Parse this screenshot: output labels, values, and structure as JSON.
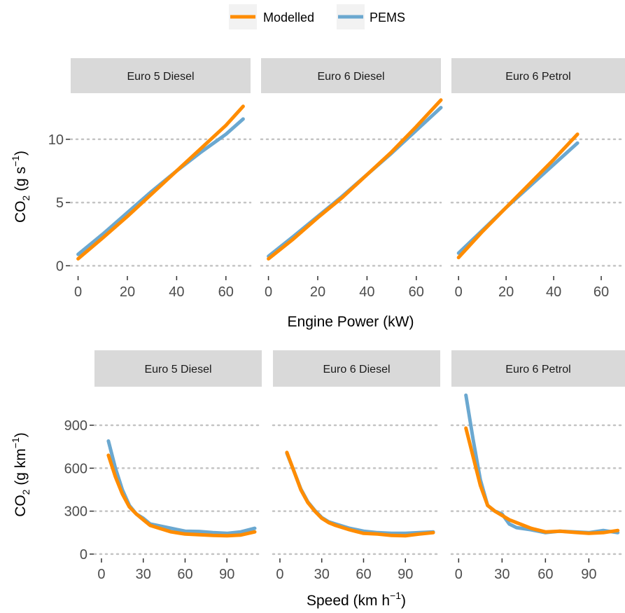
{
  "legend": {
    "items": [
      {
        "label": "Modelled",
        "color": "#FF8C00"
      },
      {
        "label": "PEMS",
        "color": "#6BA8D0"
      }
    ]
  },
  "chart_data": [
    {
      "type": "line",
      "facet_row": "top",
      "xlabel": "Engine Power (kW)",
      "ylabel_main": "CO",
      "ylabel_sub": "2",
      "ylabel_unit": " (g s",
      "ylabel_sup": "−1",
      "ylabel_close": ")",
      "xlim": [
        -3,
        70
      ],
      "ylim": [
        -0.7,
        13.2
      ],
      "xticks": [
        0,
        20,
        40,
        60
      ],
      "yticks": [
        0,
        5,
        10
      ],
      "grid": "horizontal-dotted",
      "panels": [
        {
          "label": "Euro 5 Diesel",
          "series": [
            {
              "name": "Modelled",
              "x": [
                0,
                10,
                20,
                30,
                40,
                50,
                60,
                67
              ],
              "y": [
                0.55,
                2.2,
                3.9,
                5.7,
                7.5,
                9.3,
                11.1,
                12.6
              ]
            },
            {
              "name": "PEMS",
              "x": [
                0,
                10,
                20,
                30,
                40,
                50,
                60,
                67
              ],
              "y": [
                0.9,
                2.5,
                4.2,
                5.9,
                7.5,
                9.0,
                10.4,
                11.6
              ]
            }
          ]
        },
        {
          "label": "Euro 6 Diesel",
          "series": [
            {
              "name": "Modelled",
              "x": [
                0,
                10,
                20,
                30,
                40,
                50,
                60,
                70
              ],
              "y": [
                0.55,
                2.1,
                3.8,
                5.4,
                7.2,
                9.0,
                11.0,
                13.1
              ]
            },
            {
              "name": "PEMS",
              "x": [
                0,
                10,
                20,
                30,
                40,
                50,
                60,
                70
              ],
              "y": [
                0.75,
                2.3,
                3.9,
                5.5,
                7.2,
                8.9,
                10.7,
                12.5
              ]
            }
          ]
        },
        {
          "label": "Euro 6 Petrol",
          "series": [
            {
              "name": "Modelled",
              "x": [
                0,
                10,
                20,
                30,
                40,
                50
              ],
              "y": [
                0.65,
                2.7,
                4.6,
                6.5,
                8.4,
                10.4
              ]
            },
            {
              "name": "PEMS",
              "x": [
                0,
                10,
                20,
                30,
                40,
                50
              ],
              "y": [
                1.0,
                2.8,
                4.6,
                6.3,
                8.0,
                9.7
              ]
            }
          ]
        }
      ]
    },
    {
      "type": "line",
      "facet_row": "bottom",
      "xlabel_main": "Speed (km h",
      "xlabel_sup": "−1",
      "xlabel_close": ")",
      "ylabel_main": "CO",
      "ylabel_sub": "2",
      "ylabel_unit": " (g km",
      "ylabel_sup": "−1",
      "ylabel_close": ")",
      "xlim": [
        -5,
        115
      ],
      "ylim": [
        -20,
        1130
      ],
      "xticks": [
        0,
        30,
        60,
        90
      ],
      "yticks": [
        0,
        300,
        600,
        900
      ],
      "grid": "horizontal-dotted",
      "panels": [
        {
          "label": "Euro 5 Diesel",
          "series": [
            {
              "name": "Modelled",
              "x": [
                5,
                10,
                15,
                20,
                25,
                30,
                35,
                40,
                50,
                60,
                70,
                80,
                90,
                100,
                110
              ],
              "y": [
                690,
                540,
                420,
                330,
                280,
                240,
                200,
                185,
                155,
                140,
                135,
                130,
                128,
                133,
                155
              ]
            },
            {
              "name": "PEMS",
              "x": [
                5,
                10,
                15,
                20,
                25,
                30,
                35,
                40,
                50,
                60,
                70,
                80,
                90,
                100,
                110
              ],
              "y": [
                790,
                600,
                450,
                340,
                280,
                250,
                210,
                200,
                180,
                160,
                158,
                150,
                145,
                155,
                180
              ]
            }
          ]
        },
        {
          "label": "Euro 6 Diesel",
          "series": [
            {
              "name": "Modelled",
              "x": [
                5,
                10,
                15,
                20,
                25,
                30,
                35,
                40,
                50,
                60,
                70,
                80,
                90,
                100,
                110
              ],
              "y": [
                710,
                580,
                450,
                360,
                300,
                250,
                220,
                200,
                170,
                145,
                140,
                130,
                128,
                140,
                150
              ]
            },
            {
              "name": "PEMS",
              "x": [
                5,
                10,
                15,
                20,
                25,
                30,
                35,
                40,
                50,
                60,
                70,
                80,
                90,
                100,
                110
              ],
              "y": [
                705,
                580,
                455,
                365,
                305,
                255,
                225,
                210,
                180,
                160,
                150,
                145,
                145,
                150,
                155
              ]
            }
          ]
        },
        {
          "label": "Euro 6 Petrol",
          "series": [
            {
              "name": "Modelled",
              "x": [
                5,
                10,
                15,
                20,
                25,
                30,
                35,
                40,
                50,
                60,
                70,
                80,
                90,
                100,
                110
              ],
              "y": [
                880,
                680,
                480,
                340,
                300,
                270,
                240,
                220,
                180,
                155,
                160,
                152,
                145,
                150,
                165
              ]
            },
            {
              "name": "PEMS",
              "x": [
                5,
                10,
                15,
                20,
                25,
                30,
                35,
                40,
                50,
                60,
                70,
                80,
                90,
                100,
                110
              ],
              "y": [
                1110,
                800,
                520,
                340,
                300,
                280,
                210,
                185,
                170,
                150,
                160,
                155,
                150,
                165,
                150
              ]
            }
          ]
        }
      ]
    }
  ]
}
